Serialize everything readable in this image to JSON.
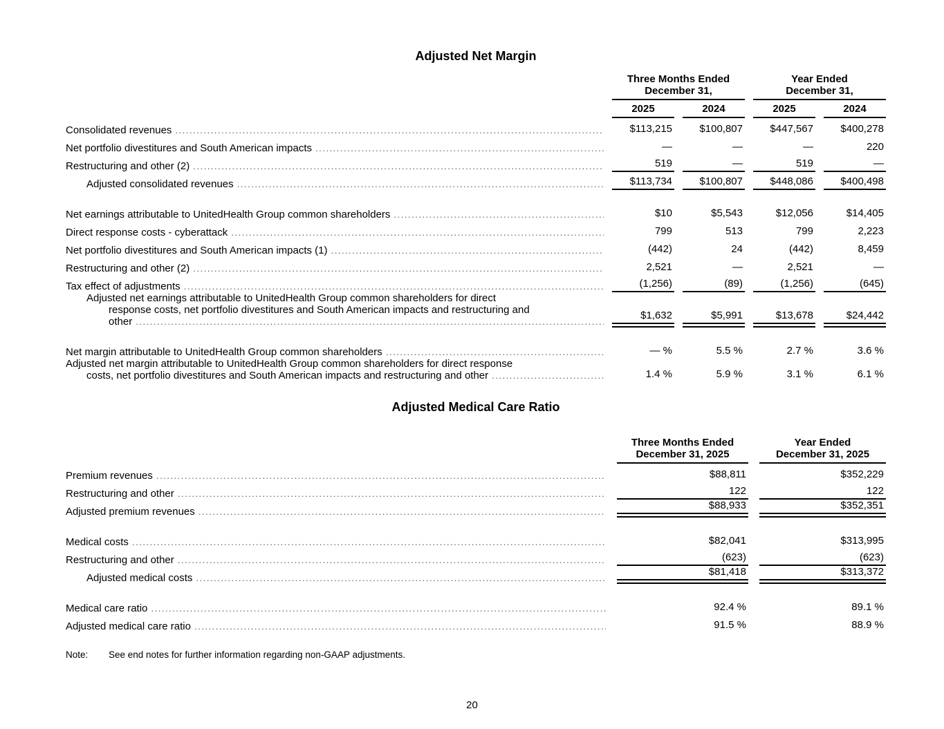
{
  "page": {
    "number": "20"
  },
  "note": {
    "label": "Note:",
    "text": "See end notes for further information regarding non-GAAP adjustments."
  },
  "net_margin": {
    "title": "Adjusted Net Margin",
    "col_groups": [
      {
        "line1": "Three Months Ended",
        "line2": "December 31,"
      },
      {
        "line1": "Year Ended",
        "line2": "December 31,"
      }
    ],
    "year_headers": [
      "2025",
      "2024",
      "2025",
      "2024"
    ],
    "rows": [
      {
        "label": "Consolidated revenues",
        "values": [
          "$113,215",
          "$100,807",
          "$447,567",
          "$400,278"
        ]
      },
      {
        "label": "Net portfolio divestitures and South American impacts",
        "values": [
          "—",
          "—",
          "—",
          "220"
        ]
      },
      {
        "label": "Restructuring and other (2)",
        "values": [
          "519",
          "—",
          "519",
          "—"
        ]
      },
      {
        "label": "Adjusted consolidated revenues",
        "values": [
          "$113,734",
          "$100,807",
          "$448,086",
          "$400,498"
        ]
      },
      {
        "label": "Net earnings attributable to UnitedHealth Group common shareholders",
        "values": [
          "$10",
          "$5,543",
          "$12,056",
          "$14,405"
        ]
      },
      {
        "label": "Direct response costs - cyberattack",
        "values": [
          "799",
          "513",
          "799",
          "2,223"
        ]
      },
      {
        "label": "Net portfolio divestitures and South American impacts (1)",
        "values": [
          "(442)",
          "24",
          "(442)",
          "8,459"
        ]
      },
      {
        "label": "Restructuring and other (2)",
        "values": [
          "2,521",
          "—",
          "2,521",
          "—"
        ]
      },
      {
        "label": "Tax effect of adjustments",
        "values": [
          "(1,256)",
          "(89)",
          "(1,256)",
          "(645)"
        ]
      },
      {
        "label_lines": [
          "Adjusted net earnings attributable to UnitedHealth Group common shareholders for direct",
          "response costs, net portfolio divestitures and South American impacts and restructuring and",
          "other"
        ],
        "values": [
          "$1,632",
          "$5,991",
          "$13,678",
          "$24,442"
        ]
      },
      {
        "label": "Net margin attributable to UnitedHealth Group common shareholders",
        "values": [
          "— %",
          "5.5 %",
          "2.7 %",
          "3.6 %"
        ]
      },
      {
        "label_lines": [
          "Adjusted net margin attributable to UnitedHealth Group common shareholders for direct response",
          "costs, net portfolio divestitures and South American impacts and restructuring and other"
        ],
        "values": [
          "1.4 %",
          "5.9 %",
          "3.1 %",
          "6.1 %"
        ]
      }
    ]
  },
  "mcr": {
    "title": "Adjusted Medical Care Ratio",
    "col_headers": [
      {
        "line1": "Three Months Ended",
        "line2": "December 31, 2025"
      },
      {
        "line1": "Year Ended",
        "line2": "December 31, 2025"
      }
    ],
    "rows": [
      {
        "label": "Premium revenues",
        "values": [
          "$88,811",
          "$352,229"
        ]
      },
      {
        "label": "Restructuring and other",
        "values": [
          "122",
          "122"
        ]
      },
      {
        "label": "Adjusted premium revenues",
        "values": [
          "$88,933",
          "$352,351"
        ]
      },
      {
        "label": "Medical costs",
        "values": [
          "$82,041",
          "$313,995"
        ]
      },
      {
        "label": "Restructuring and other",
        "values": [
          "(623)",
          "(623)"
        ]
      },
      {
        "label": "Adjusted medical costs",
        "values": [
          "$81,418",
          "$313,372"
        ]
      },
      {
        "label": "Medical care ratio",
        "values": [
          "92.4 %",
          "89.1 %"
        ]
      },
      {
        "label": "Adjusted medical care ratio",
        "values": [
          "91.5 %",
          "88.9 %"
        ]
      }
    ]
  }
}
